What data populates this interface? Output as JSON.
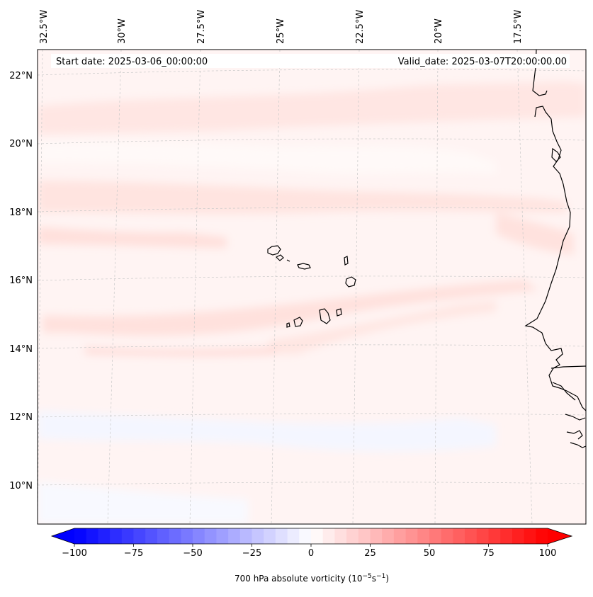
{
  "map": {
    "start_label": "Start date: 2025-03-06_00:00:00",
    "valid_label": "Valid_date: 2025-03-07T20:00:00.00",
    "lon_labels": [
      "32.5°W",
      "30°W",
      "27.5°W",
      "25°W",
      "22.5°W",
      "20°W",
      "17.5°W"
    ],
    "lat_labels": [
      "22°N",
      "20°N",
      "18°N",
      "16°N",
      "14°N",
      "12°N",
      "10°N"
    ]
  },
  "colorbar": {
    "label_main": "700 hPa absolute vorticity (10",
    "label_exp1": "−5",
    "label_mid": "s",
    "label_exp2": "−1",
    "label_end": ")",
    "ticks": [
      "−100",
      "−75",
      "−50",
      "−25",
      "0",
      "25",
      "50",
      "75",
      "100"
    ],
    "min_color": "#0000ff",
    "mid_color": "#ffffff",
    "max_color": "#ff0000"
  },
  "colors": {
    "background_tint": "#fff4f3",
    "band_tint": "#ffe3e0",
    "low_tint": "#f6f8ff",
    "coast": "#000000",
    "grid": "#c8c8c8"
  }
}
